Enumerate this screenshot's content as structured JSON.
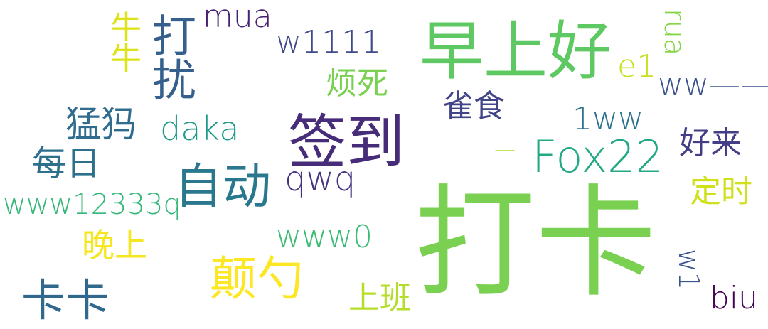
{
  "words": [
    {
      "text": "打卡",
      "color": "#7ad151"
    },
    {
      "text": "早上好",
      "color": "#5ec962"
    },
    {
      "text": "签到",
      "color": "#472c7a"
    },
    {
      "text": "自动",
      "color": "#2a788e"
    },
    {
      "text": "Fox22",
      "color": "#22a884"
    },
    {
      "text": "打扰",
      "color": "#35608d"
    },
    {
      "text": "颠勺",
      "color": "#fde725"
    },
    {
      "text": "卡卡",
      "color": "#31688e"
    },
    {
      "text": "mua",
      "color": "#482173"
    },
    {
      "text": "w1111",
      "color": "#3e4a89"
    },
    {
      "text": "牛牛",
      "color": "#dde318"
    },
    {
      "text": "烦死",
      "color": "#7ad151"
    },
    {
      "text": "雀食",
      "color": "#414487"
    },
    {
      "text": "e1",
      "color": "#c8e020"
    },
    {
      "text": "rua",
      "color": "#86d549"
    },
    {
      "text": "ww——",
      "color": "#3b528b"
    },
    {
      "text": "1ww",
      "color": "#2c728e"
    },
    {
      "text": "猛犸",
      "color": "#2f6c8e"
    },
    {
      "text": "daka",
      "color": "#1f9a8a"
    },
    {
      "text": "每日",
      "color": "#2d708e"
    },
    {
      "text": "qwq",
      "color": "#46327e"
    },
    {
      "text": "www12333q",
      "color": "#35b779"
    },
    {
      "text": "好来",
      "color": "#433e85"
    },
    {
      "text": "定时",
      "color": "#d0e11c"
    },
    {
      "text": "晚上",
      "color": "#f6e620"
    },
    {
      "text": "www0",
      "color": "#3bbb75"
    },
    {
      "text": "上班",
      "color": "#b5de2b"
    },
    {
      "text": "w1",
      "color": "#3a548c"
    },
    {
      "text": "biu",
      "color": "#440154"
    },
    {
      "text": "—",
      "color": "#b8de29"
    }
  ]
}
